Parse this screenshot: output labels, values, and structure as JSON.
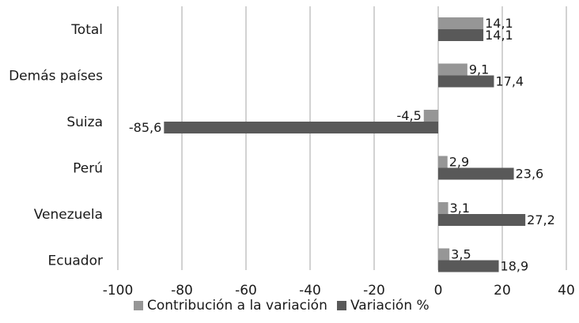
{
  "chart_data": {
    "type": "bar",
    "orientation": "horizontal",
    "categories": [
      "Total",
      "Demás países",
      "Suiza",
      "Perú",
      "Venezuela",
      "Ecuador"
    ],
    "series": [
      {
        "name": "Contribución a la variación",
        "values": [
          14.1,
          9.1,
          -4.5,
          2.9,
          3.1,
          3.5
        ],
        "labels": [
          "14,1",
          "9,1",
          "-4,5",
          "2,9",
          "3,1",
          "3,5"
        ],
        "color": "#969696"
      },
      {
        "name": "Variación %",
        "values": [
          14.1,
          17.4,
          -85.6,
          23.6,
          27.2,
          18.9
        ],
        "labels": [
          "14,1",
          "17,4",
          "-85,6",
          "23,6",
          "27,2",
          "18,9"
        ],
        "color": "#595959"
      }
    ],
    "xlim": [
      -100,
      40
    ],
    "xticks": [
      -100,
      -80,
      -60,
      -40,
      -20,
      0,
      20,
      40
    ],
    "grid": true,
    "legend": "bottom",
    "title": "",
    "xlabel": "",
    "ylabel": ""
  }
}
